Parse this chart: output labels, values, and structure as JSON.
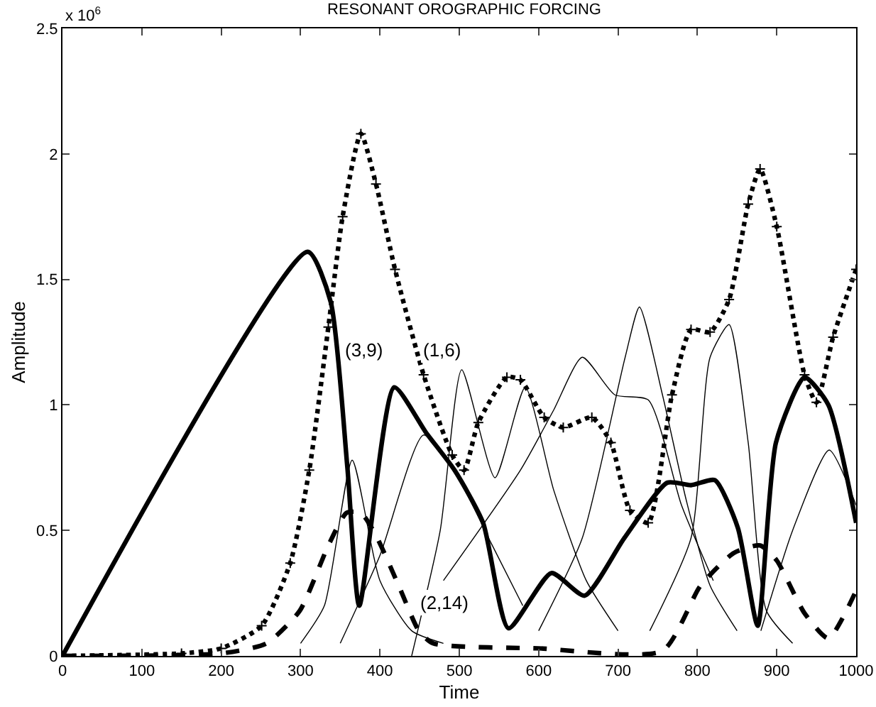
{
  "chart_data": {
    "type": "line",
    "title": "RESONANT OROGRAPHIC FORCING",
    "xlabel": "Time",
    "ylabel": "Amplitude",
    "xlim": [
      0,
      1000
    ],
    "xticks": [
      0,
      100,
      200,
      300,
      400,
      500,
      600,
      700,
      800,
      900,
      1000
    ],
    "ylim": [
      0,
      2.5
    ],
    "yticks": [
      0,
      0.5,
      1,
      1.5,
      2,
      2.5
    ],
    "annotations": [
      "x 10$^{6}$",
      "(3,9)",
      "(1,6)",
      "(2,14)"
    ],
    "series": [
      {
        "color": "#000000",
        "line_style": "solid",
        "marker": "none",
        "x": [
          0,
          309,
          338,
          359,
          374,
          418,
          458,
          494,
          530,
          562,
          616,
          658,
          708,
          762,
          792,
          822,
          851,
          876,
          899,
          935,
          965,
          1000
        ],
        "values": [
          0,
          1.61,
          1.41,
          0.75,
          0.2,
          1.07,
          0.89,
          0.74,
          0.53,
          0.11,
          0.33,
          0.24,
          0.47,
          0.69,
          0.68,
          0.7,
          0.51,
          0.12,
          0.85,
          1.11,
          1.0,
          0.53
        ]
      },
      {
        "color": "#000000",
        "line_style": "dashed",
        "marker": "none",
        "x": [
          0,
          200,
          257,
          299,
          335,
          358,
          376,
          395,
          425,
          449,
          467,
          600,
          756,
          804,
          846,
          879,
          900,
          935,
          965,
          1000
        ],
        "values": [
          0,
          0.01,
          0.05,
          0.18,
          0.44,
          0.57,
          0.57,
          0.48,
          0.27,
          0.1,
          0.05,
          0.03,
          0.02,
          0.28,
          0.41,
          0.44,
          0.38,
          0.17,
          0.07,
          0.26
        ]
      },
      {
        "color": "#000000",
        "line_style": "dotted",
        "marker": "cross",
        "x": [
          0,
          150,
          200,
          251,
          287,
          311,
          335,
          353,
          376,
          395,
          419,
          455,
          491,
          506,
          524,
          560,
          577,
          607,
          631,
          667,
          691,
          715,
          738,
          768,
          792,
          816,
          840,
          864,
          879,
          900,
          935,
          950,
          971,
          1000
        ],
        "values": [
          0,
          0.01,
          0.03,
          0.12,
          0.37,
          0.74,
          1.31,
          1.75,
          2.08,
          1.88,
          1.54,
          1.12,
          0.8,
          0.74,
          0.93,
          1.11,
          1.1,
          0.95,
          0.91,
          0.95,
          0.85,
          0.58,
          0.53,
          1.04,
          1.3,
          1.29,
          1.42,
          1.8,
          1.94,
          1.71,
          1.12,
          1.01,
          1.27,
          1.54
        ]
      },
      {
        "color": "#000000",
        "line_style": "solid",
        "marker": "none",
        "x": [
          440,
          476,
          503,
          545,
          583,
          619,
          660,
          700
        ],
        "values": [
          0,
          0.5,
          1.14,
          0.71,
          1.07,
          0.66,
          0.3,
          0.1
        ]
      },
      {
        "color": "#000000",
        "line_style": "solid",
        "marker": "none",
        "x": [
          600,
          655,
          709,
          727,
          756,
          786,
          816,
          850
        ],
        "values": [
          0.1,
          0.47,
          1.19,
          1.39,
          1.04,
          0.62,
          0.28,
          0.1
        ]
      },
      {
        "color": "#000000",
        "line_style": "solid",
        "marker": "none",
        "x": [
          480,
          577,
          619,
          655,
          696,
          738,
          780,
          820
        ],
        "values": [
          0.3,
          0.74,
          0.98,
          1.19,
          1.04,
          1.02,
          0.6,
          0.3
        ]
      },
      {
        "color": "#000000",
        "line_style": "solid",
        "marker": "none",
        "x": [
          740,
          792,
          816,
          840,
          864,
          887,
          920
        ],
        "values": [
          0.1,
          0.47,
          1.19,
          1.32,
          0.85,
          0.18,
          0.05
        ]
      },
      {
        "color": "#000000",
        "line_style": "solid",
        "marker": "none",
        "x": [
          300,
          330,
          365,
          400,
          440,
          480
        ],
        "values": [
          0.05,
          0.2,
          0.78,
          0.3,
          0.1,
          0.05
        ]
      },
      {
        "color": "#000000",
        "line_style": "solid",
        "marker": "none",
        "x": [
          350,
          400,
          455,
          500,
          540,
          580
        ],
        "values": [
          0.05,
          0.4,
          0.88,
          0.7,
          0.45,
          0.2
        ]
      },
      {
        "color": "#000000",
        "line_style": "solid",
        "marker": "none",
        "x": [
          880,
          920,
          966,
          1000
        ],
        "values": [
          0.1,
          0.5,
          0.82,
          0.6
        ]
      }
    ]
  }
}
